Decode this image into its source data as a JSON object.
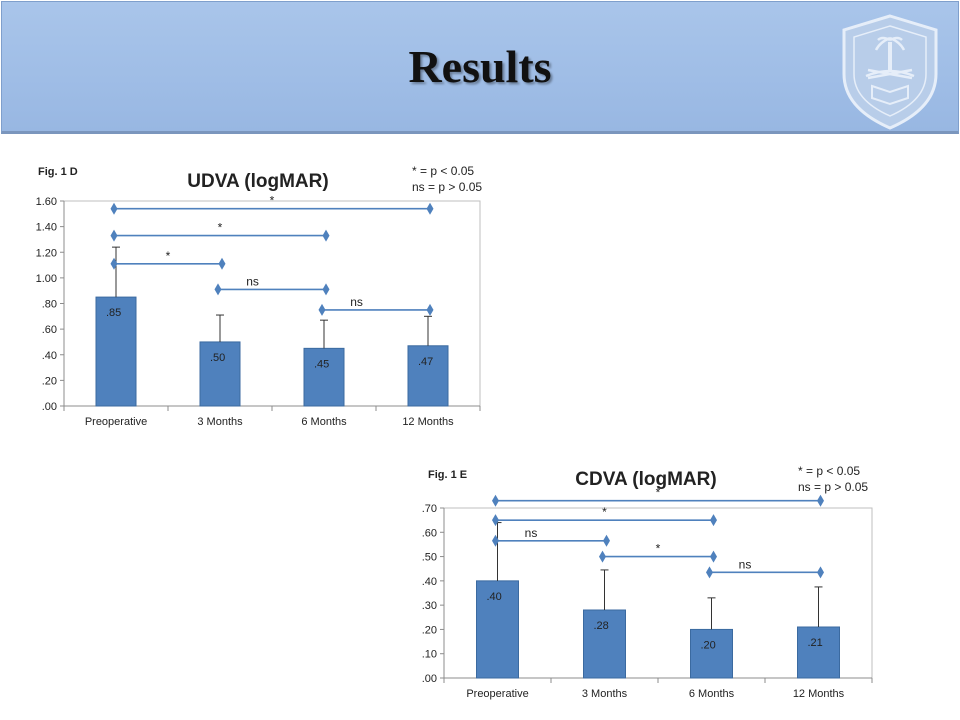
{
  "slide": {
    "title": "Results"
  },
  "colors": {
    "header_bg": "#9fbde6",
    "bar": "#4f81bd",
    "bar_border": "#3b6aa0",
    "bracket": "#4f81bd"
  },
  "logo": {
    "icon": "university-seal-icon"
  },
  "chart_data": [
    {
      "type": "bar",
      "figure_label": "Fig. 1 D",
      "title": "UDVA (logMAR)",
      "legend_notes": [
        "* = p < 0.05",
        "ns = p > 0.05"
      ],
      "categories": [
        "Preoperative",
        "3 Months",
        "6 Months",
        "12 Months"
      ],
      "values": [
        0.85,
        0.5,
        0.45,
        0.47
      ],
      "data_labels": [
        ".85",
        ".50",
        ".45",
        ".47"
      ],
      "error_upper": [
        1.24,
        0.71,
        0.67,
        0.7
      ],
      "ylim": [
        0,
        1.6
      ],
      "yticks": [
        0,
        0.2,
        0.4,
        0.6,
        0.8,
        1.0,
        1.2,
        1.4,
        1.6
      ],
      "ytick_labels": [
        ".00",
        ".20",
        ".40",
        ".60",
        ".80",
        "1.00",
        "1.20",
        "1.40",
        "1.60"
      ],
      "xlabel": "",
      "ylabel": "",
      "comparisons": [
        {
          "from": 0,
          "to": 3,
          "y": 1.54,
          "label": "*"
        },
        {
          "from": 0,
          "to": 2,
          "y": 1.33,
          "label": "*"
        },
        {
          "from": 0,
          "to": 1,
          "y": 1.11,
          "label": "*"
        },
        {
          "from": 1,
          "to": 2,
          "y": 0.91,
          "label": "ns"
        },
        {
          "from": 2,
          "to": 3,
          "y": 0.75,
          "label": "ns"
        }
      ]
    },
    {
      "type": "bar",
      "figure_label": "Fig. 1 E",
      "title": "CDVA (logMAR)",
      "legend_notes": [
        "* = p < 0.05",
        "ns = p > 0.05"
      ],
      "categories": [
        "Preoperative",
        "3 Months",
        "6 Months",
        "12 Months"
      ],
      "values": [
        0.4,
        0.28,
        0.2,
        0.21
      ],
      "data_labels": [
        ".40",
        ".28",
        ".20",
        ".21"
      ],
      "error_upper": [
        0.64,
        0.445,
        0.33,
        0.375
      ],
      "ylim": [
        0,
        0.7
      ],
      "yticks": [
        0,
        0.1,
        0.2,
        0.3,
        0.4,
        0.5,
        0.6,
        0.7
      ],
      "ytick_labels": [
        ".00",
        ".10",
        ".20",
        ".30",
        ".40",
        ".50",
        ".60",
        ".70"
      ],
      "xlabel": "",
      "ylabel": "",
      "comparisons": [
        {
          "from": 0,
          "to": 3,
          "y": 0.73,
          "label": "*"
        },
        {
          "from": 0,
          "to": 2,
          "y": 0.65,
          "label": "*"
        },
        {
          "from": 0,
          "to": 1,
          "y": 0.565,
          "label": "ns"
        },
        {
          "from": 1,
          "to": 2,
          "y": 0.5,
          "label": "*"
        },
        {
          "from": 2,
          "to": 3,
          "y": 0.435,
          "label": "ns"
        }
      ]
    }
  ]
}
